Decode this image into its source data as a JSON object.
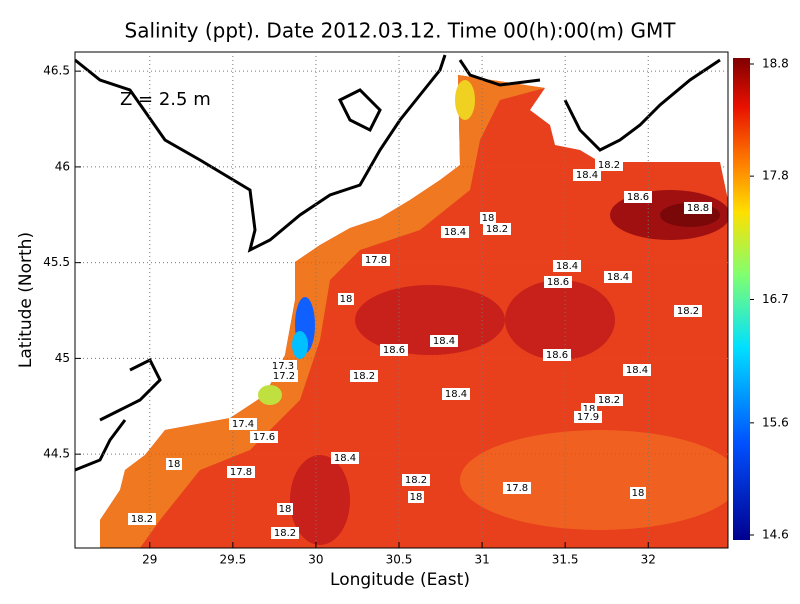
{
  "title": "Salinity (ppt). Date 2012.03.12. Time 00(h):00(m) GMT",
  "depth_label": "Z = 2.5 m",
  "chart_data": {
    "type": "contour-map",
    "x_label": "Longitude (East)",
    "y_label": "Latitude (North)",
    "xlim": [
      28.55,
      32.48
    ],
    "ylim": [
      44.01,
      46.6
    ],
    "xticks": [
      29,
      29.5,
      30,
      30.5,
      31,
      31.5,
      32
    ],
    "yticks": [
      44.5,
      45,
      45.5,
      46,
      46.5
    ],
    "grid": true,
    "colorbar": {
      "lim": [
        14.6,
        18.8
      ],
      "ticks": [
        18.8,
        17.8,
        16.7,
        15.6,
        14.6
      ]
    },
    "contour_labels": [
      "18.2",
      "18.4",
      "18.6",
      "18.8",
      "18",
      "18.4",
      "18.2",
      "17.8",
      "18.4",
      "18.6",
      "18.4",
      "18",
      "18.2",
      "18.4",
      "18.6",
      "18.6",
      "18.4",
      "17.3",
      "17.2",
      "18.2",
      "18.4",
      "18.2",
      "18",
      "17.9",
      "17.4",
      "17.6",
      "18.4",
      "18",
      "17.8",
      "18.2",
      "18",
      "17.8",
      "18",
      "18",
      "18.2",
      "18.2"
    ]
  }
}
